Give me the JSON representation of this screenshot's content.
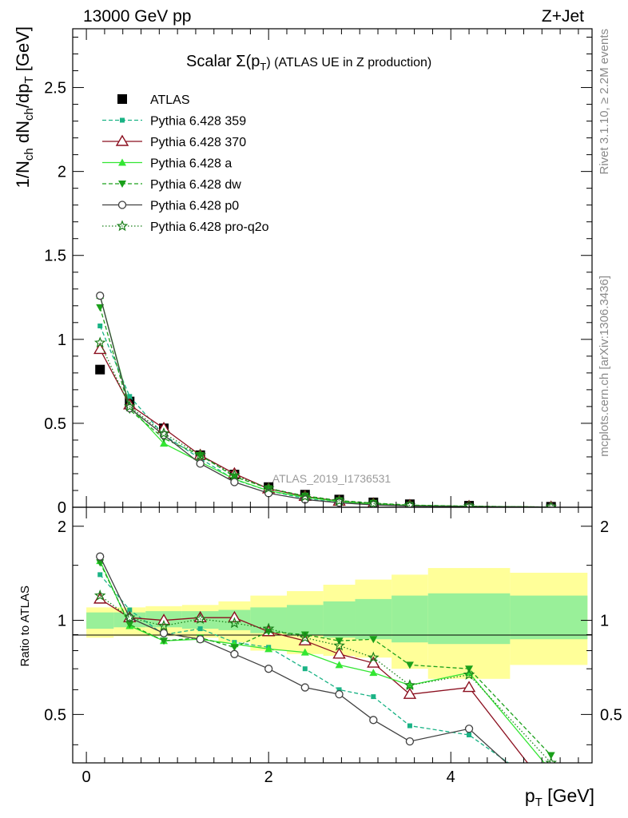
{
  "header": {
    "left": "13000 GeV pp",
    "right": "Z+Jet"
  },
  "side_labels": {
    "rivet": "Rivet 3.1.10, ≥ 2.2M events",
    "mcplots": "mcplots.cern.ch [arXiv:1306.3436]"
  },
  "watermark": "ATLAS_2019_I1736531",
  "chart_data": [
    {
      "type": "line",
      "title": "Scalar Σ(p_T) (ATLAS UE in Z production)",
      "title_parts": {
        "pre": "Scalar ",
        "sym": "Σ(p",
        "sub": "T",
        "post": ") (ATLAS UE in Z production)"
      },
      "ylabel": "1/N_ch dN_ch/dp_T [GeV]",
      "ylabel_parts": {
        "a": "1/N",
        "b": "ch",
        "c": " dN",
        "d": "ch",
        "e": "/dp",
        "f": "T",
        "g": " [GeV]"
      },
      "xlim": [
        -0.15,
        5.55
      ],
      "ylim": [
        0,
        2.85
      ],
      "yticks": [
        0,
        0.5,
        1,
        1.5,
        2,
        2.5
      ],
      "ytick_labels": [
        "0",
        "0.5",
        "1",
        "1.5",
        "2",
        "2.5"
      ],
      "x": [
        0.15,
        0.475,
        0.85,
        1.25,
        1.625,
        2.0,
        2.4,
        2.775,
        3.15,
        3.55,
        4.2,
        5.1
      ],
      "series": [
        {
          "name": "ATLAS",
          "color": "#000000",
          "style": "solid",
          "marker": "square",
          "values": [
            0.82,
            0.63,
            0.47,
            0.31,
            0.195,
            0.12,
            0.075,
            0.046,
            0.029,
            0.018,
            0.009,
            0.003
          ]
        },
        {
          "name": "Pythia 6.428 359",
          "color": "#1ab385",
          "style": "dash",
          "marker": "smallsquare",
          "values": [
            1.08,
            0.66,
            0.43,
            0.29,
            0.165,
            0.098,
            0.052,
            0.028,
            0.016,
            0.008,
            0.004,
            0.001
          ]
        },
        {
          "name": "Pythia 6.428 370",
          "color": "#8b0f1f",
          "style": "solid",
          "marker": "opentriangle",
          "values": [
            0.94,
            0.61,
            0.47,
            0.31,
            0.2,
            0.11,
            0.065,
            0.036,
            0.021,
            0.011,
            0.0055,
            0.001
          ]
        },
        {
          "name": "Pythia 6.428 a",
          "color": "#33e633",
          "style": "solid",
          "marker": "triangle",
          "values": [
            1.26,
            0.6,
            0.38,
            0.27,
            0.168,
            0.098,
            0.06,
            0.034,
            0.02,
            0.011,
            0.006,
            0.001
          ]
        },
        {
          "name": "Pythia 6.428 dw",
          "color": "#1aa01a",
          "style": "dash",
          "marker": "invtriangle",
          "values": [
            1.19,
            0.58,
            0.41,
            0.31,
            0.182,
            0.112,
            0.068,
            0.04,
            0.025,
            0.013,
            0.0065,
            0.001
          ]
        },
        {
          "name": "Pythia 6.428 p0",
          "color": "#404040",
          "style": "solid",
          "marker": "opencircle",
          "values": [
            1.26,
            0.59,
            0.43,
            0.26,
            0.15,
            0.084,
            0.046,
            0.027,
            0.014,
            0.0075,
            0.004,
            0.001
          ]
        },
        {
          "name": "Pythia 6.428 pro-q2o",
          "color": "#1a801a",
          "style": "dot",
          "marker": "openstar",
          "values": [
            0.98,
            0.6,
            0.44,
            0.31,
            0.19,
            0.113,
            0.064,
            0.038,
            0.022,
            0.011,
            0.006,
            0.001
          ]
        }
      ]
    },
    {
      "type": "line",
      "title": "",
      "xlabel": "p_T [GeV]",
      "xlabel_parts": {
        "a": "p",
        "b": "T",
        "c": " [GeV]"
      },
      "ylabel": "Ratio to ATLAS",
      "xlim": [
        -0.15,
        5.55
      ],
      "ylim": [
        0.35,
        2.3
      ],
      "xticks": [
        0,
        2,
        4
      ],
      "xtick_labels": [
        "0",
        "2",
        "4"
      ],
      "yticks": [
        0.5,
        1,
        2
      ],
      "ytick_labels": [
        "0.5",
        "1",
        "2"
      ],
      "x": [
        0.15,
        0.475,
        0.85,
        1.25,
        1.625,
        2.0,
        2.4,
        2.775,
        3.15,
        3.55,
        4.2,
        5.1
      ],
      "bands": {
        "edges": [
          0,
          0.3,
          0.65,
          1.05,
          1.45,
          1.8,
          2.2,
          2.6,
          2.95,
          3.35,
          3.75,
          4.65,
          5.5
        ],
        "yellow_lo": [
          0.88,
          0.89,
          0.89,
          0.88,
          0.85,
          0.8,
          0.78,
          0.77,
          0.76,
          0.7,
          0.65,
          0.72
        ],
        "yellow_hi": [
          1.1,
          1.1,
          1.11,
          1.12,
          1.15,
          1.2,
          1.24,
          1.3,
          1.35,
          1.4,
          1.47,
          1.42
        ],
        "green_lo": [
          0.94,
          0.95,
          0.95,
          0.94,
          0.93,
          0.91,
          0.9,
          0.88,
          0.87,
          0.85,
          0.84,
          0.87
        ],
        "green_hi": [
          1.06,
          1.06,
          1.07,
          1.07,
          1.08,
          1.1,
          1.12,
          1.15,
          1.17,
          1.2,
          1.22,
          1.2
        ]
      },
      "series": [
        {
          "name": "Pythia 6.428 359",
          "color": "#1ab385",
          "style": "dash",
          "marker": "smallsquare",
          "values": [
            1.4,
            1.08,
            0.9,
            0.94,
            0.85,
            0.82,
            0.7,
            0.6,
            0.57,
            0.46,
            0.43,
            0.28
          ]
        },
        {
          "name": "Pythia 6.428 370",
          "color": "#8b0f1f",
          "style": "solid",
          "marker": "opentriangle",
          "values": [
            1.17,
            1.02,
            1.0,
            1.02,
            1.02,
            0.92,
            0.86,
            0.78,
            0.73,
            0.58,
            0.61,
            0.28
          ]
        },
        {
          "name": "Pythia 6.428 a",
          "color": "#33e633",
          "style": "solid",
          "marker": "triangle",
          "values": [
            1.55,
            0.96,
            0.86,
            0.87,
            0.84,
            0.81,
            0.79,
            0.72,
            0.68,
            0.62,
            0.68,
            0.33
          ]
        },
        {
          "name": "Pythia 6.428 dw",
          "color": "#1aa01a",
          "style": "dash",
          "marker": "invtriangle",
          "values": [
            1.53,
            0.97,
            0.86,
            0.88,
            0.82,
            0.92,
            0.9,
            0.86,
            0.87,
            0.72,
            0.7,
            0.37
          ]
        },
        {
          "name": "Pythia 6.428 p0",
          "color": "#404040",
          "style": "solid",
          "marker": "opencircle",
          "values": [
            1.6,
            1.02,
            0.91,
            0.87,
            0.78,
            0.7,
            0.61,
            0.58,
            0.48,
            0.41,
            0.45,
            0.26
          ]
        },
        {
          "name": "Pythia 6.428 pro-q2o",
          "color": "#1a801a",
          "style": "dot",
          "marker": "openstar",
          "values": [
            1.2,
            1.02,
            0.96,
            1.01,
            0.98,
            0.94,
            0.88,
            0.83,
            0.76,
            0.62,
            0.67,
            0.35
          ]
        }
      ]
    }
  ]
}
